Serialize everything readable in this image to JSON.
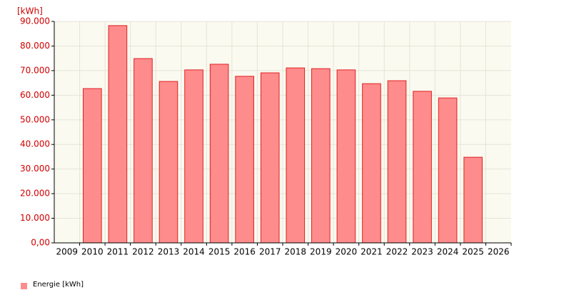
{
  "chart_data": {
    "type": "bar",
    "y_label": "[kWh]",
    "categories": [
      "2009",
      "2010",
      "2011",
      "2012",
      "2013",
      "2014",
      "2015",
      "2016",
      "2017",
      "2018",
      "2019",
      "2020",
      "2021",
      "2022",
      "2023",
      "2024",
      "2025",
      "2026"
    ],
    "series": [
      {
        "name": "Energie [kWh]",
        "color": "#ff8c8c",
        "edge_color": "#e02020",
        "values": [
          null,
          62700,
          88300,
          74900,
          65600,
          70300,
          72600,
          67700,
          69100,
          71100,
          70800,
          70300,
          64700,
          65900,
          61600,
          58900,
          34800,
          null
        ]
      }
    ],
    "ylim": [
      0,
      90000
    ],
    "yticks": [
      {
        "value": 0,
        "label": "0,00"
      },
      {
        "value": 10000,
        "label": "10.000"
      },
      {
        "value": 20000,
        "label": "20.000"
      },
      {
        "value": 30000,
        "label": "30.000"
      },
      {
        "value": 40000,
        "label": "40.000"
      },
      {
        "value": 50000,
        "label": "50.000"
      },
      {
        "value": 60000,
        "label": "60.000"
      },
      {
        "value": 70000,
        "label": "70.000"
      },
      {
        "value": 80000,
        "label": "80.000"
      },
      {
        "value": 90000,
        "label": "90.000"
      }
    ],
    "grid": true,
    "legend": "bottom-left"
  }
}
